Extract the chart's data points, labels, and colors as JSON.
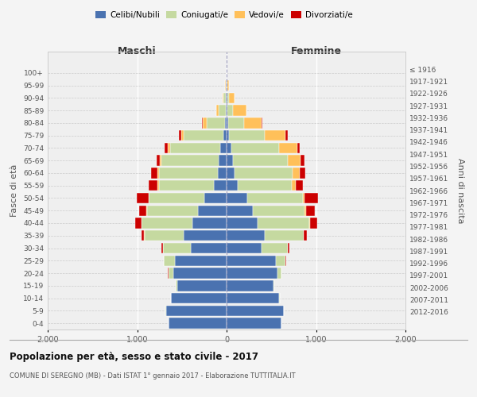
{
  "age_groups": [
    "0-4",
    "5-9",
    "10-14",
    "15-19",
    "20-24",
    "25-29",
    "30-34",
    "35-39",
    "40-44",
    "45-49",
    "50-54",
    "55-59",
    "60-64",
    "65-69",
    "70-74",
    "75-79",
    "80-84",
    "85-89",
    "90-94",
    "95-99",
    "100+"
  ],
  "birth_years": [
    "2012-2016",
    "2007-2011",
    "2002-2006",
    "1997-2001",
    "1992-1996",
    "1987-1991",
    "1982-1986",
    "1977-1981",
    "1972-1976",
    "1967-1971",
    "1962-1966",
    "1957-1961",
    "1952-1956",
    "1947-1951",
    "1942-1946",
    "1937-1941",
    "1932-1936",
    "1927-1931",
    "1922-1926",
    "1917-1921",
    "≤ 1916"
  ],
  "male": {
    "celibi": [
      650,
      680,
      620,
      550,
      600,
      580,
      400,
      480,
      380,
      320,
      250,
      140,
      100,
      90,
      70,
      40,
      20,
      10,
      5,
      5,
      2
    ],
    "coniugati": [
      2,
      3,
      5,
      15,
      50,
      120,
      310,
      440,
      570,
      570,
      620,
      620,
      660,
      640,
      560,
      440,
      200,
      80,
      30,
      8,
      1
    ],
    "vedovi": [
      0,
      0,
      0,
      0,
      1,
      1,
      2,
      3,
      5,
      5,
      5,
      10,
      15,
      20,
      30,
      30,
      50,
      30,
      10,
      2,
      0
    ],
    "divorziati": [
      0,
      0,
      0,
      1,
      3,
      5,
      20,
      30,
      70,
      80,
      130,
      100,
      70,
      30,
      30,
      20,
      5,
      0,
      0,
      0,
      0
    ]
  },
  "female": {
    "nubili": [
      610,
      640,
      590,
      520,
      570,
      550,
      390,
      430,
      350,
      290,
      230,
      120,
      90,
      70,
      50,
      30,
      15,
      8,
      5,
      4,
      2
    ],
    "coniugate": [
      1,
      2,
      3,
      10,
      40,
      110,
      290,
      430,
      570,
      580,
      620,
      610,
      650,
      610,
      540,
      400,
      180,
      60,
      25,
      5,
      1
    ],
    "vedove": [
      0,
      0,
      0,
      0,
      1,
      2,
      3,
      5,
      10,
      15,
      20,
      40,
      80,
      150,
      200,
      230,
      200,
      150,
      60,
      15,
      1
    ],
    "divorziate": [
      0,
      0,
      0,
      1,
      3,
      5,
      20,
      30,
      80,
      100,
      150,
      80,
      60,
      40,
      30,
      20,
      5,
      0,
      0,
      0,
      0
    ]
  },
  "colors": {
    "celibi_nubili": "#4a72b0",
    "coniugati": "#c5d9a0",
    "vedovi": "#ffc05a",
    "divorziati": "#cc0000"
  },
  "xlim": 2000,
  "title": "Popolazione per età, sesso e stato civile - 2017",
  "subtitle": "COMUNE DI SEREGNO (MB) - Dati ISTAT 1° gennaio 2017 - Elaborazione TUTTITALIA.IT",
  "ylabel_left": "Fasce di età",
  "ylabel_right": "Anni di nascita",
  "xlabel_left": "Maschi",
  "xlabel_right": "Femmine",
  "xticks": [
    -2000,
    -1000,
    0,
    1000,
    2000
  ],
  "xticklabels": [
    "2.000",
    "1.000",
    "0",
    "1.000",
    "2.000"
  ],
  "bg_color": "#f4f4f4",
  "plot_bg": "#efefef"
}
